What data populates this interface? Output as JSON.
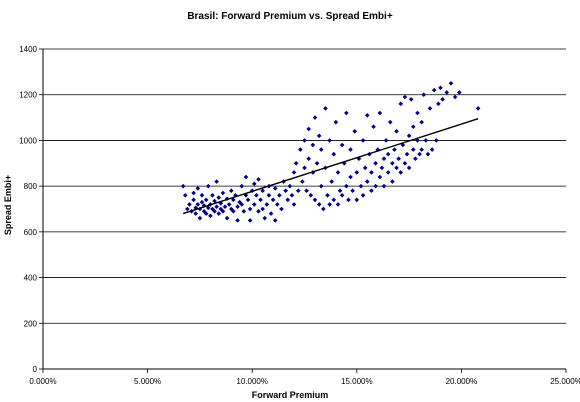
{
  "chart_data": {
    "type": "scatter",
    "title": "Brasil: Forward Premium vs. Spread Embi+",
    "xlabel": "Forward Premium",
    "ylabel": "Spread Embi+",
    "xlim": [
      0,
      0.25
    ],
    "ylim": [
      0,
      1400
    ],
    "x_ticks": [
      0,
      0.05,
      0.1,
      0.15,
      0.2,
      0.25
    ],
    "x_tick_labels": [
      "0.000%",
      "5.000%",
      "10.000%",
      "15.000%",
      "20.000%",
      "25.000%"
    ],
    "y_ticks": [
      0,
      200,
      400,
      600,
      800,
      1000,
      1200,
      1400
    ],
    "y_tick_labels": [
      "0",
      "200",
      "400",
      "600",
      "800",
      "1000",
      "1200",
      "1400"
    ],
    "grid": "horizontal",
    "marker_color": "#00008B",
    "trendline": {
      "x": [
        0.067,
        0.208
      ],
      "y": [
        680,
        1095
      ],
      "color": "#000000"
    },
    "series": [
      {
        "values": [
          [
            0.067,
            800
          ],
          [
            0.068,
            760
          ],
          [
            0.069,
            700
          ],
          [
            0.07,
            720
          ],
          [
            0.071,
            690
          ],
          [
            0.072,
            740
          ],
          [
            0.072,
            770
          ],
          [
            0.073,
            705
          ],
          [
            0.073,
            680
          ],
          [
            0.074,
            720
          ],
          [
            0.074,
            790
          ],
          [
            0.075,
            700
          ],
          [
            0.075,
            660
          ],
          [
            0.076,
            730
          ],
          [
            0.076,
            760
          ],
          [
            0.077,
            690
          ],
          [
            0.077,
            715
          ],
          [
            0.078,
            680
          ],
          [
            0.078,
            740
          ],
          [
            0.079,
            705
          ],
          [
            0.079,
            800
          ],
          [
            0.08,
            720
          ],
          [
            0.08,
            670
          ],
          [
            0.081,
            760
          ],
          [
            0.081,
            700
          ],
          [
            0.082,
            690
          ],
          [
            0.082,
            735
          ],
          [
            0.083,
            710
          ],
          [
            0.083,
            820
          ],
          [
            0.084,
            680
          ],
          [
            0.084,
            750
          ],
          [
            0.085,
            700
          ],
          [
            0.085,
            725
          ],
          [
            0.086,
            690
          ],
          [
            0.086,
            770
          ],
          [
            0.087,
            710
          ],
          [
            0.088,
            745
          ],
          [
            0.088,
            660
          ],
          [
            0.089,
            720
          ],
          [
            0.09,
            700
          ],
          [
            0.09,
            780
          ],
          [
            0.091,
            740
          ],
          [
            0.091,
            690
          ],
          [
            0.092,
            760
          ],
          [
            0.093,
            710
          ],
          [
            0.093,
            650
          ],
          [
            0.094,
            730
          ],
          [
            0.095,
            800
          ],
          [
            0.095,
            720
          ],
          [
            0.096,
            690
          ],
          [
            0.097,
            760
          ],
          [
            0.097,
            840
          ],
          [
            0.098,
            740
          ],
          [
            0.099,
            700
          ],
          [
            0.099,
            650
          ],
          [
            0.1,
            780
          ],
          [
            0.101,
            720
          ],
          [
            0.101,
            810
          ],
          [
            0.102,
            760
          ],
          [
            0.103,
            690
          ],
          [
            0.103,
            830
          ],
          [
            0.104,
            740
          ],
          [
            0.105,
            700
          ],
          [
            0.105,
            780
          ],
          [
            0.106,
            660
          ],
          [
            0.107,
            720
          ],
          [
            0.108,
            800
          ],
          [
            0.108,
            760
          ],
          [
            0.109,
            680
          ],
          [
            0.11,
            740
          ],
          [
            0.111,
            650
          ],
          [
            0.111,
            790
          ],
          [
            0.112,
            720
          ],
          [
            0.113,
            760
          ],
          [
            0.114,
            700
          ],
          [
            0.115,
            820
          ],
          [
            0.116,
            780
          ],
          [
            0.117,
            740
          ],
          [
            0.118,
            800
          ],
          [
            0.119,
            760
          ],
          [
            0.12,
            720
          ],
          [
            0.12,
            860
          ],
          [
            0.121,
            900
          ],
          [
            0.122,
            780
          ],
          [
            0.123,
            960
          ],
          [
            0.124,
            820
          ],
          [
            0.125,
            1000
          ],
          [
            0.125,
            880
          ],
          [
            0.126,
            780
          ],
          [
            0.127,
            920
          ],
          [
            0.127,
            1050
          ],
          [
            0.128,
            760
          ],
          [
            0.129,
            980
          ],
          [
            0.129,
            860
          ],
          [
            0.13,
            740
          ],
          [
            0.13,
            1100
          ],
          [
            0.131,
            900
          ],
          [
            0.132,
            720
          ],
          [
            0.132,
            1020
          ],
          [
            0.133,
            800
          ],
          [
            0.133,
            960
          ],
          [
            0.134,
            700
          ],
          [
            0.135,
            880
          ],
          [
            0.135,
            1140
          ],
          [
            0.136,
            760
          ],
          [
            0.137,
            1000
          ],
          [
            0.137,
            720
          ],
          [
            0.138,
            820
          ],
          [
            0.139,
            940
          ],
          [
            0.139,
            740
          ],
          [
            0.14,
            1080
          ],
          [
            0.141,
            860
          ],
          [
            0.141,
            720
          ],
          [
            0.142,
            780
          ],
          [
            0.143,
            980
          ],
          [
            0.143,
            760
          ],
          [
            0.144,
            900
          ],
          [
            0.145,
            800
          ],
          [
            0.145,
            1120
          ],
          [
            0.146,
            740
          ],
          [
            0.147,
            840
          ],
          [
            0.147,
            960
          ],
          [
            0.148,
            780
          ],
          [
            0.149,
            1040
          ],
          [
            0.15,
            860
          ],
          [
            0.15,
            740
          ],
          [
            0.151,
            920
          ],
          [
            0.152,
            800
          ],
          [
            0.153,
            1000
          ],
          [
            0.153,
            760
          ],
          [
            0.154,
            880
          ],
          [
            0.155,
            820
          ],
          [
            0.155,
            1110
          ],
          [
            0.156,
            940
          ],
          [
            0.157,
            780
          ],
          [
            0.157,
            860
          ],
          [
            0.158,
            1060
          ],
          [
            0.159,
            900
          ],
          [
            0.159,
            800
          ],
          [
            0.16,
            960
          ],
          [
            0.161,
            840
          ],
          [
            0.161,
            1120
          ],
          [
            0.162,
            880
          ],
          [
            0.163,
            920
          ],
          [
            0.163,
            800
          ],
          [
            0.164,
            1000
          ],
          [
            0.165,
            860
          ],
          [
            0.165,
            940
          ],
          [
            0.166,
            1080
          ],
          [
            0.167,
            900
          ],
          [
            0.167,
            820
          ],
          [
            0.168,
            960
          ],
          [
            0.169,
            880
          ],
          [
            0.169,
            1040
          ],
          [
            0.17,
            920
          ],
          [
            0.171,
            860
          ],
          [
            0.171,
            1160
          ],
          [
            0.172,
            980
          ],
          [
            0.173,
            900
          ],
          [
            0.173,
            1190
          ],
          [
            0.174,
            940
          ],
          [
            0.175,
            1020
          ],
          [
            0.175,
            880
          ],
          [
            0.176,
            1180
          ],
          [
            0.177,
            960
          ],
          [
            0.177,
            1060
          ],
          [
            0.178,
            920
          ],
          [
            0.179,
            1120
          ],
          [
            0.179,
            1000
          ],
          [
            0.18,
            940
          ],
          [
            0.181,
            1080
          ],
          [
            0.181,
            960
          ],
          [
            0.182,
            1200
          ],
          [
            0.183,
            1000
          ],
          [
            0.184,
            940
          ],
          [
            0.185,
            1140
          ],
          [
            0.186,
            960
          ],
          [
            0.187,
            1220
          ],
          [
            0.188,
            1000
          ],
          [
            0.189,
            1160
          ],
          [
            0.19,
            1230
          ],
          [
            0.191,
            1180
          ],
          [
            0.193,
            1210
          ],
          [
            0.195,
            1250
          ],
          [
            0.197,
            1190
          ],
          [
            0.199,
            1210
          ],
          [
            0.208,
            1140
          ]
        ]
      }
    ]
  }
}
